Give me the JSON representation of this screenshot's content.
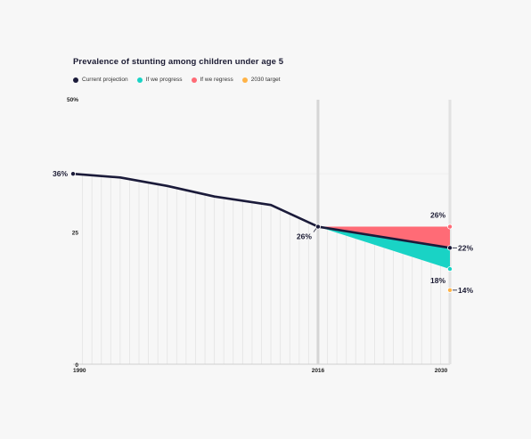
{
  "chart_data": {
    "type": "line",
    "title": "Prevalence of stunting among children under age 5",
    "xlabel": "",
    "ylabel": "",
    "xlim": [
      1990,
      2030
    ],
    "ylim": [
      0,
      50
    ],
    "y_ticks": [
      {
        "value": 0,
        "label": "0"
      },
      {
        "value": 25,
        "label": "25"
      },
      {
        "value": 50,
        "label": "50%"
      }
    ],
    "x_ticks": [
      {
        "value": 1990,
        "label": "1990"
      },
      {
        "value": 2016,
        "label": "2016"
      },
      {
        "value": 2030,
        "label": "2030"
      }
    ],
    "legend_position": "top-left",
    "series": [
      {
        "name": "Current projection",
        "color": "#1b1b3a",
        "x": [
          1990,
          1995,
          2000,
          2005,
          2011,
          2016,
          2030
        ],
        "y": [
          36,
          35.3,
          33.7,
          31.7,
          30.1,
          26,
          22
        ]
      },
      {
        "name": "If we progress",
        "color": "#19d3c5",
        "x": [
          2016,
          2030
        ],
        "y": [
          26,
          18
        ]
      },
      {
        "name": "If we regress",
        "color": "#ff6b76",
        "x": [
          2016,
          2030
        ],
        "y": [
          26,
          26
        ]
      },
      {
        "name": "2030 target",
        "color": "#ffb347",
        "x": [
          2030
        ],
        "y": [
          14
        ]
      }
    ],
    "annotations": [
      {
        "series": "Current projection",
        "x": 1990,
        "y": 36,
        "label": "36%"
      },
      {
        "series": "Current projection",
        "x": 2016,
        "y": 26,
        "label": "26%"
      },
      {
        "series": "If we regress",
        "x": 2030,
        "y": 26,
        "label": "26%"
      },
      {
        "series": "Current projection",
        "x": 2030,
        "y": 22,
        "label": "22%"
      },
      {
        "series": "If we progress",
        "x": 2030,
        "y": 18,
        "label": "18%"
      },
      {
        "series": "2030 target",
        "x": 2030,
        "y": 14,
        "label": "14%"
      }
    ]
  }
}
